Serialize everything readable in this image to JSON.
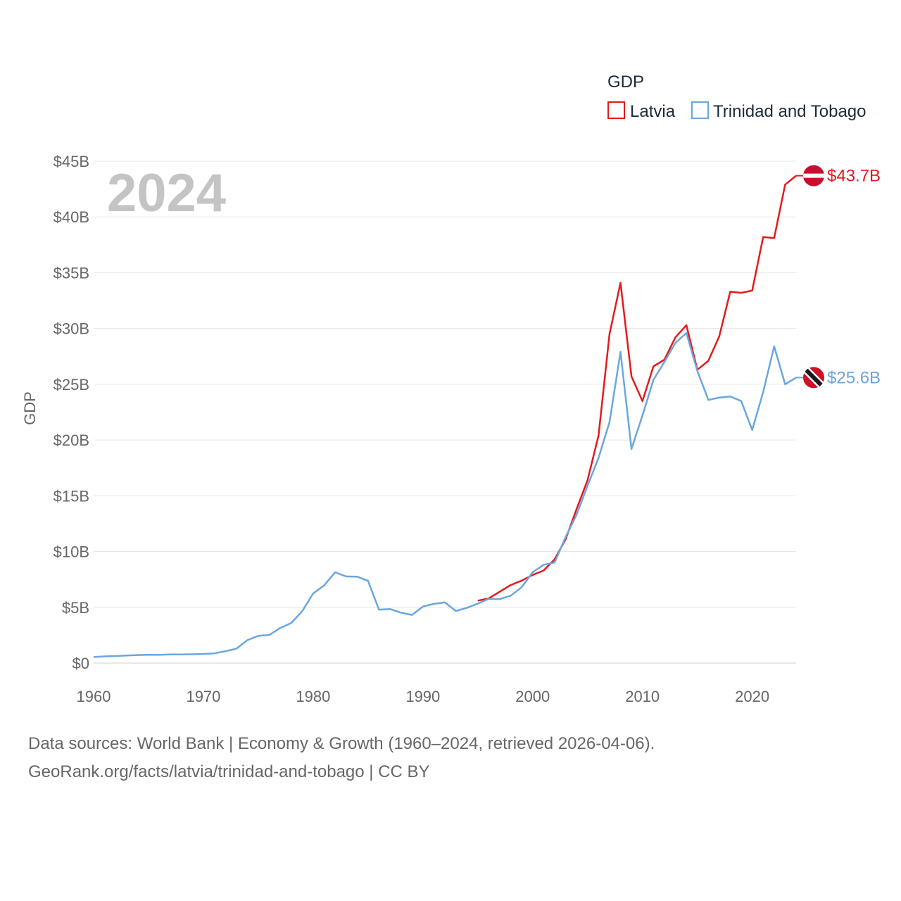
{
  "chart_data": {
    "type": "line",
    "title": "",
    "ylabel": "GDP",
    "xlabel": "",
    "year_display": "2024",
    "legend_title": "GDP",
    "xlim": [
      1960,
      2024
    ],
    "ylim": [
      0,
      45
    ],
    "y_unit": "billions USD",
    "x_ticks": [
      1960,
      1970,
      1980,
      1990,
      2000,
      2010,
      2020
    ],
    "y_ticks": [
      {
        "value": 0,
        "label": "$0"
      },
      {
        "value": 5,
        "label": "$5B"
      },
      {
        "value": 10,
        "label": "$10B"
      },
      {
        "value": 15,
        "label": "$15B"
      },
      {
        "value": 20,
        "label": "$20B"
      },
      {
        "value": 25,
        "label": "$25B"
      },
      {
        "value": 30,
        "label": "$30B"
      },
      {
        "value": 35,
        "label": "$35B"
      },
      {
        "value": 40,
        "label": "$40B"
      },
      {
        "value": 45,
        "label": "$45B"
      }
    ],
    "series": [
      {
        "name": "Latvia",
        "color": "#e41a1c",
        "end_label": "$43.7B",
        "flag": "latvia-flag",
        "x": [
          1995,
          1996,
          1997,
          1998,
          1999,
          2000,
          2001,
          2002,
          2003,
          2004,
          2005,
          2006,
          2007,
          2008,
          2009,
          2010,
          2011,
          2012,
          2013,
          2014,
          2015,
          2016,
          2017,
          2018,
          2019,
          2020,
          2021,
          2022,
          2023,
          2024
        ],
        "values": [
          5.6,
          5.8,
          6.4,
          7.0,
          7.4,
          7.9,
          8.3,
          9.3,
          11.1,
          13.8,
          16.4,
          20.4,
          29.5,
          34.1,
          25.7,
          23.5,
          26.6,
          27.2,
          29.2,
          30.3,
          26.3,
          27.1,
          29.3,
          33.3,
          33.2,
          33.4,
          38.2,
          38.1,
          42.9,
          43.7
        ]
      },
      {
        "name": "Trinidad and Tobago",
        "color": "#6aa7df",
        "end_label": "$25.6B",
        "flag": "trinidad-and-tobago-flag",
        "x": [
          1960,
          1961,
          1962,
          1963,
          1964,
          1965,
          1966,
          1967,
          1968,
          1969,
          1970,
          1971,
          1972,
          1973,
          1974,
          1975,
          1976,
          1977,
          1978,
          1979,
          1980,
          1981,
          1982,
          1983,
          1984,
          1985,
          1986,
          1987,
          1988,
          1989,
          1990,
          1991,
          1992,
          1993,
          1994,
          1995,
          1996,
          1997,
          1998,
          1999,
          2000,
          2001,
          2002,
          2003,
          2004,
          2005,
          2006,
          2007,
          2008,
          2009,
          2010,
          2011,
          2012,
          2013,
          2014,
          2015,
          2016,
          2017,
          2018,
          2019,
          2020,
          2021,
          2022,
          2023,
          2024
        ],
        "values": [
          0.54,
          0.6,
          0.63,
          0.68,
          0.72,
          0.74,
          0.74,
          0.77,
          0.77,
          0.79,
          0.82,
          0.87,
          1.06,
          1.29,
          2.05,
          2.44,
          2.52,
          3.15,
          3.59,
          4.65,
          6.24,
          6.97,
          8.14,
          7.77,
          7.75,
          7.38,
          4.79,
          4.85,
          4.52,
          4.32,
          5.07,
          5.31,
          5.44,
          4.67,
          4.95,
          5.33,
          5.76,
          5.74,
          6.04,
          6.81,
          8.15,
          8.82,
          9.01,
          11.3,
          13.3,
          15.9,
          18.4,
          21.6,
          27.9,
          19.2,
          22.2,
          25.4,
          27.0,
          28.7,
          29.6,
          26.2,
          23.6,
          23.8,
          23.9,
          23.5,
          20.9,
          24.3,
          28.4,
          25.0,
          25.6
        ]
      }
    ]
  },
  "footer": {
    "line1": "Data sources: World Bank | Economy & Growth (1960–2024, retrieved 2026-04-06).",
    "line2": "GeoRank.org/facts/latvia/trinidad-and-tobago | CC BY"
  }
}
